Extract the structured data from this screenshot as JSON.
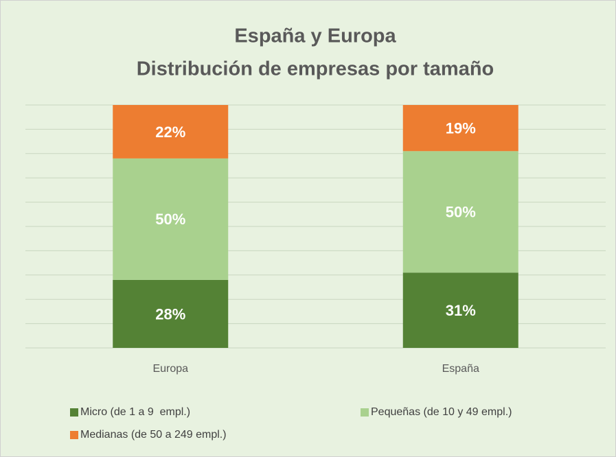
{
  "chart_data": {
    "type": "stacked_bar",
    "title": "España y Europa",
    "subtitle": "Distribución de empresas por tamaño",
    "categories": [
      "Europa",
      "España"
    ],
    "series": [
      {
        "name": "Micro (de 1 a 9  empl.)",
        "color": "#548235",
        "values": [
          28,
          31
        ],
        "value_labels": [
          "28%",
          "31%"
        ]
      },
      {
        "name": "Pequeñas (de 10 y 49 empl.)",
        "color": "#a9d18e",
        "values": [
          50,
          50
        ],
        "value_labels": [
          "50%",
          "50%"
        ]
      },
      {
        "name": "Medianas (de 50 a 249 empl.)",
        "color": "#ed7d31",
        "values": [
          22,
          19
        ],
        "value_labels": [
          "22%",
          "19%"
        ]
      }
    ],
    "ylim": [
      0,
      100
    ],
    "yticks": [
      0,
      10,
      20,
      30,
      40,
      50,
      60,
      70,
      80,
      90,
      100
    ],
    "grid": true,
    "legend": "bottom"
  }
}
